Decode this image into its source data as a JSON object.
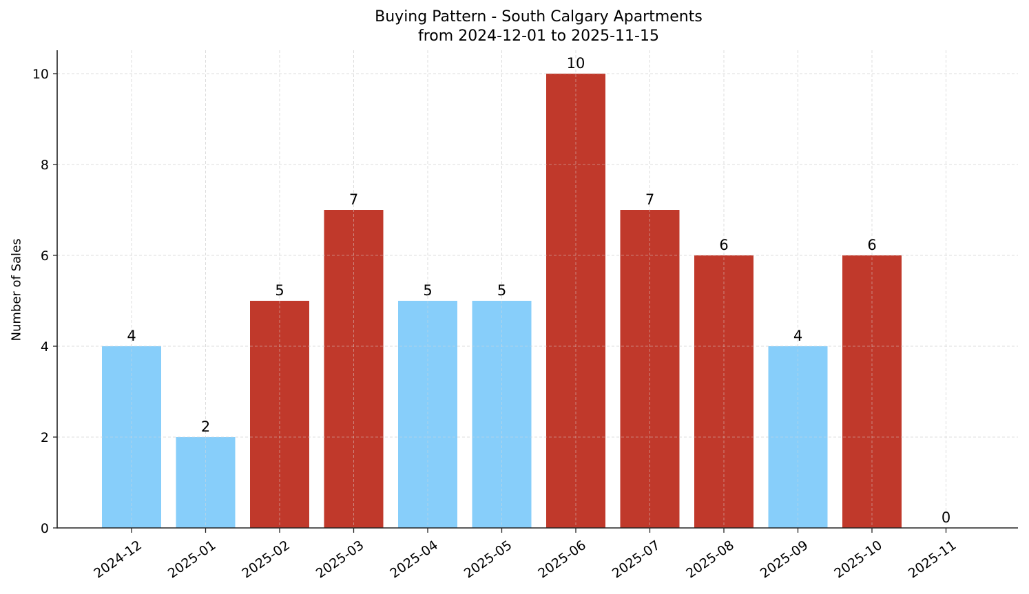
{
  "chart_data": {
    "type": "bar",
    "title": "Buying Pattern - South Calgary Apartments",
    "subtitle": "from 2024-12-01 to 2025-11-15",
    "xlabel": "",
    "ylabel": "Number of Sales",
    "categories": [
      "2024-12",
      "2025-01",
      "2025-02",
      "2025-03",
      "2025-04",
      "2025-05",
      "2025-06",
      "2025-07",
      "2025-08",
      "2025-09",
      "2025-10",
      "2025-11"
    ],
    "values": [
      4,
      2,
      5,
      7,
      5,
      5,
      10,
      7,
      6,
      4,
      6,
      0
    ],
    "bar_colors": [
      "#87CEFA",
      "#87CEFA",
      "#C0392B",
      "#C0392B",
      "#87CEFA",
      "#87CEFA",
      "#C0392B",
      "#C0392B",
      "#C0392B",
      "#87CEFA",
      "#C0392B",
      "#C0392B"
    ],
    "data_labels": [
      "4",
      "2",
      "5",
      "7",
      "5",
      "5",
      "10",
      "7",
      "6",
      "4",
      "6",
      "0"
    ],
    "yticks": [
      0,
      2,
      4,
      6,
      8,
      10
    ],
    "ylim": [
      0,
      10.5
    ],
    "grid": true,
    "grid_style": "dashed",
    "xtick_rotation": 35,
    "legend": null
  },
  "colors": {
    "light_bar": "#87CEFA",
    "dark_bar": "#C0392B",
    "grid": "#d9d9d9",
    "axis": "#222222"
  }
}
